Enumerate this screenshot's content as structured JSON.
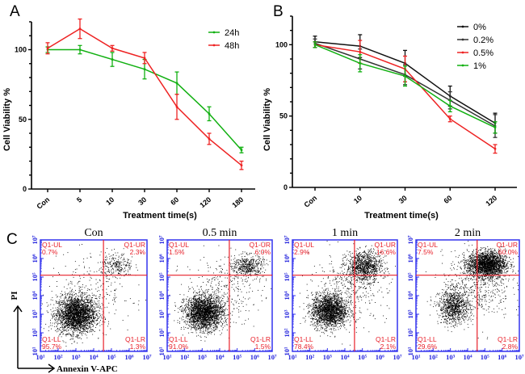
{
  "chart_data": [
    {
      "panel": "A",
      "type": "line",
      "title": "",
      "xlabel": "Treatment time(s)",
      "ylabel": "Cell Viability %",
      "categories": [
        "Con",
        "5",
        "10",
        "30",
        "60",
        "120",
        "180"
      ],
      "ylim": [
        0,
        120
      ],
      "yticks": [
        0,
        50,
        100
      ],
      "grid": false,
      "legend_position": "top-right",
      "series": [
        {
          "name": "24h",
          "color": "#11b011",
          "values": [
            100,
            100,
            93,
            86,
            76,
            54,
            28
          ],
          "errors": [
            2,
            3,
            5,
            7,
            8,
            5,
            2
          ]
        },
        {
          "name": "48h",
          "color": "#ee2222",
          "values": [
            101,
            115,
            101,
            94,
            59,
            36,
            17
          ],
          "errors": [
            4,
            7,
            2,
            4,
            9,
            4,
            3
          ]
        }
      ]
    },
    {
      "panel": "B",
      "type": "line",
      "title": "",
      "xlabel": "Treatment time(s)",
      "ylabel": "Cell Viability %",
      "categories": [
        "Con",
        "10",
        "30",
        "60",
        "120"
      ],
      "ylim": [
        0,
        120
      ],
      "yticks": [
        0,
        50,
        100
      ],
      "grid": false,
      "legend_position": "top-right",
      "series": [
        {
          "name": "0%",
          "color": "#111111",
          "values": [
            102,
            99,
            87,
            64,
            45
          ],
          "errors": [
            4,
            8,
            9,
            7,
            7
          ]
        },
        {
          "name": "0.2%",
          "color": "#333333",
          "values": [
            101,
            90,
            79,
            61,
            43
          ],
          "errors": [
            3,
            7,
            7,
            6,
            8
          ]
        },
        {
          "name": "0.5%",
          "color": "#ee2222",
          "values": [
            100,
            95,
            83,
            48,
            27
          ],
          "errors": [
            2,
            8,
            9,
            2,
            3
          ]
        },
        {
          "name": "1%",
          "color": "#11b011",
          "values": [
            100,
            87,
            78,
            57,
            42
          ],
          "errors": [
            2,
            6,
            7,
            4,
            4
          ]
        }
      ]
    },
    {
      "panel": "C",
      "type": "scatter",
      "xlabel": "Annexin V-APC",
      "ylabel": "PI",
      "x_scale": "log",
      "y_scale": "log",
      "xlim": [
        10,
        10000000
      ],
      "ylim": [
        10,
        10000000
      ],
      "tick_labels": [
        "10¹",
        "10²",
        "10³",
        "10⁴",
        "10⁵",
        "10⁶",
        "10⁷"
      ],
      "plots": [
        {
          "title": "Con",
          "quadrants": {
            "UL": {
              "label": "Q1-UL",
              "value": "0.7%"
            },
            "UR": {
              "label": "Q1-UR",
              "value": "2.3%"
            },
            "LL": {
              "label": "Q1-LL",
              "value": "95.7%"
            },
            "LR": {
              "label": "Q1-LR",
              "value": "1.3%"
            }
          }
        },
        {
          "title": "0.5 min",
          "quadrants": {
            "UL": {
              "label": "Q1-UL",
              "value": "1.5%"
            },
            "UR": {
              "label": "Q1-UR",
              "value": "6.0%"
            },
            "LL": {
              "label": "Q1-LL",
              "value": "91.0%"
            },
            "LR": {
              "label": "Q1-LR",
              "value": "1.5%"
            }
          }
        },
        {
          "title": "1 min",
          "quadrants": {
            "UL": {
              "label": "Q1-UL",
              "value": "2.9%"
            },
            "UR": {
              "label": "Q1-UR",
              "value": "16.6%"
            },
            "LL": {
              "label": "Q1-LL",
              "value": "78.4%"
            },
            "LR": {
              "label": "Q1-LR",
              "value": "2.1%"
            }
          }
        },
        {
          "title": "2 min",
          "quadrants": {
            "UL": {
              "label": "Q1-UL",
              "value": "7.5%"
            },
            "UR": {
              "label": "Q1-UR",
              "value": "60.0%"
            },
            "LL": {
              "label": "Q1-LL",
              "value": "29.6%"
            },
            "LR": {
              "label": "Q1-LR",
              "value": "2.8%"
            }
          }
        }
      ]
    }
  ],
  "panel_letters": [
    "A",
    "B",
    "C"
  ]
}
